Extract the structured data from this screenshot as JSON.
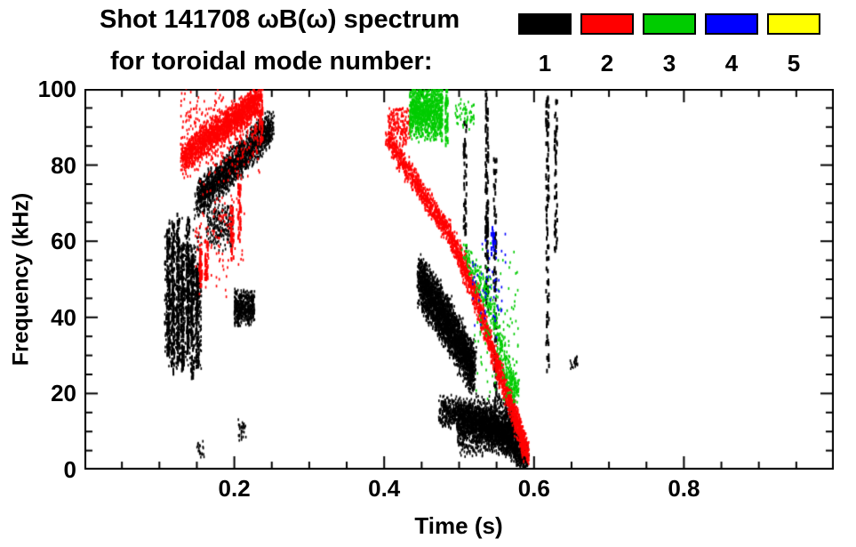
{
  "chart_data": {
    "type": "scatter",
    "title": "Shot 141708 ωB(ω) spectrum",
    "subtitle": "for toroidal mode number:",
    "xlabel": "Time (s)",
    "ylabel": "Frequency (kHz)",
    "xlim": [
      0,
      1.0
    ],
    "ylim": [
      0,
      100
    ],
    "xticks": [
      0.2,
      0.4,
      0.6,
      0.8
    ],
    "xtick_labels": [
      "0.2",
      "0.4",
      "0.6",
      "0.8"
    ],
    "x_minor_step": 0.05,
    "yticks": [
      0,
      20,
      40,
      60,
      80,
      100
    ],
    "ytick_labels": [
      "0",
      "20",
      "40",
      "60",
      "80",
      "100"
    ],
    "y_minor_step": 5,
    "grid": false,
    "legend_position": "top-right",
    "legend": [
      {
        "label": "1",
        "color": "#000000"
      },
      {
        "label": "2",
        "color": "#ff0000"
      },
      {
        "label": "3",
        "color": "#00cc00"
      },
      {
        "label": "4",
        "color": "#0000ff"
      },
      {
        "label": "5",
        "color": "#ffff00"
      }
    ],
    "series": [
      {
        "name": "mode-1",
        "color": "#000000",
        "clusters": [
          {
            "kind": "blob",
            "t": [
              0.107,
              0.156
            ],
            "f": [
              24,
              67
            ],
            "n": 700
          },
          {
            "kind": "vline",
            "t": 0.112,
            "f": [
              30,
              63
            ],
            "n": 90
          },
          {
            "kind": "vline",
            "t": 0.118,
            "f": [
              25,
              65
            ],
            "n": 100
          },
          {
            "kind": "vline",
            "t": 0.125,
            "f": [
              28,
              67
            ],
            "n": 100
          },
          {
            "kind": "vline",
            "t": 0.131,
            "f": [
              25,
              61
            ],
            "n": 90
          },
          {
            "kind": "vline",
            "t": 0.138,
            "f": [
              30,
              66
            ],
            "n": 100
          },
          {
            "kind": "vline",
            "t": 0.144,
            "f": [
              24,
              58
            ],
            "n": 90
          },
          {
            "kind": "vline",
            "t": 0.151,
            "f": [
              27,
              53
            ],
            "n": 80
          },
          {
            "kind": "blob",
            "t": [
              0.15,
              0.16
            ],
            "f": [
              2,
              8
            ],
            "n": 20
          },
          {
            "kind": "blob",
            "t": [
              0.205,
              0.216
            ],
            "f": [
              7,
              14
            ],
            "n": 30
          },
          {
            "kind": "path",
            "pts": [
              [
                0.15,
                71
              ],
              [
                0.185,
                77
              ],
              [
                0.215,
                83
              ],
              [
                0.25,
                90
              ]
            ],
            "spread": 5.5,
            "n": 1700
          },
          {
            "kind": "blob",
            "t": [
              0.163,
              0.198
            ],
            "f": [
              57,
              71
            ],
            "n": 220
          },
          {
            "kind": "blob",
            "t": [
              0.2,
              0.227
            ],
            "f": [
              37,
              48
            ],
            "n": 450
          },
          {
            "kind": "path",
            "pts": [
              [
                0.447,
                50
              ],
              [
                0.483,
                39
              ],
              [
                0.52,
                26
              ]
            ],
            "spread": 8,
            "n": 2800
          },
          {
            "kind": "path",
            "pts": [
              [
                0.475,
                16
              ],
              [
                0.53,
                12
              ],
              [
                0.56,
                9
              ],
              [
                0.59,
                3
              ]
            ],
            "spread": 5,
            "n": 2000
          },
          {
            "kind": "blob",
            "t": [
              0.498,
              0.575
            ],
            "f": [
              3,
              20
            ],
            "n": 1400
          },
          {
            "kind": "vline",
            "t": 0.508,
            "f": [
              55,
              92
            ],
            "n": 45
          },
          {
            "kind": "vline",
            "t": 0.537,
            "f": [
              42,
              100
            ],
            "n": 120
          },
          {
            "kind": "vline",
            "t": 0.548,
            "f": [
              8,
              82
            ],
            "n": 100
          },
          {
            "kind": "vline",
            "t": 0.618,
            "f": [
              25,
              100
            ],
            "n": 100
          },
          {
            "kind": "vline",
            "t": 0.629,
            "f": [
              55,
              97
            ],
            "n": 55
          },
          {
            "kind": "blob",
            "t": [
              0.648,
              0.658
            ],
            "f": [
              26,
              30
            ],
            "n": 22
          }
        ]
      },
      {
        "name": "mode-2",
        "color": "#ff0000",
        "clusters": [
          {
            "kind": "path",
            "pts": [
              [
                0.132,
                82
              ],
              [
                0.17,
                88
              ],
              [
                0.205,
                93
              ],
              [
                0.232,
                97
              ]
            ],
            "spread": 4.5,
            "n": 1700
          },
          {
            "kind": "blob",
            "t": [
              0.128,
              0.235
            ],
            "f": [
              74,
              101
            ],
            "n": 420
          },
          {
            "kind": "vline",
            "t": 0.155,
            "f": [
              48,
              58
            ],
            "n": 35
          },
          {
            "kind": "vline",
            "t": 0.163,
            "f": [
              50,
              60
            ],
            "n": 30
          },
          {
            "kind": "vline",
            "t": 0.197,
            "f": [
              55,
              70
            ],
            "n": 35
          },
          {
            "kind": "vline",
            "t": 0.207,
            "f": [
              60,
              75
            ],
            "n": 35
          },
          {
            "kind": "blob",
            "t": [
              0.148,
              0.215
            ],
            "f": [
              44,
              76
            ],
            "n": 110
          },
          {
            "kind": "vline",
            "t": 0.236,
            "f": [
              86,
              101
            ],
            "n": 40
          },
          {
            "kind": "blob",
            "t": [
              0.405,
              0.435
            ],
            "f": [
              84,
              97
            ],
            "n": 180
          },
          {
            "kind": "path",
            "pts": [
              [
                0.405,
                87
              ],
              [
                0.45,
                73
              ],
              [
                0.49,
                61
              ],
              [
                0.52,
                47
              ],
              [
                0.55,
                28
              ],
              [
                0.575,
                14
              ],
              [
                0.59,
                4
              ]
            ],
            "spread": 3.5,
            "n": 2400
          }
        ]
      },
      {
        "name": "mode-3",
        "color": "#00cc00",
        "clusters": [
          {
            "kind": "blob",
            "t": [
              0.434,
              0.478
            ],
            "f": [
              86,
              102
            ],
            "n": 1000
          },
          {
            "kind": "vline",
            "t": 0.483,
            "f": [
              84,
              100
            ],
            "n": 35
          },
          {
            "kind": "blob",
            "t": [
              0.495,
              0.52
            ],
            "f": [
              88,
              98
            ],
            "n": 55
          },
          {
            "kind": "path",
            "pts": [
              [
                0.505,
                58
              ],
              [
                0.54,
                45
              ],
              [
                0.565,
                25
              ],
              [
                0.578,
                20
              ]
            ],
            "spread": 4,
            "n": 380
          },
          {
            "kind": "blob",
            "t": [
              0.52,
              0.58
            ],
            "f": [
              15,
              62
            ],
            "n": 110
          }
        ]
      },
      {
        "name": "mode-4",
        "color": "#0000ff",
        "clusters": [
          {
            "kind": "blob",
            "t": [
              0.518,
              0.562
            ],
            "f": [
              33,
              66
            ],
            "n": 60
          },
          {
            "kind": "vline",
            "t": 0.545,
            "f": [
              56,
              64
            ],
            "n": 12
          }
        ]
      },
      {
        "name": "mode-5",
        "color": "#ffff00",
        "clusters": []
      }
    ]
  }
}
